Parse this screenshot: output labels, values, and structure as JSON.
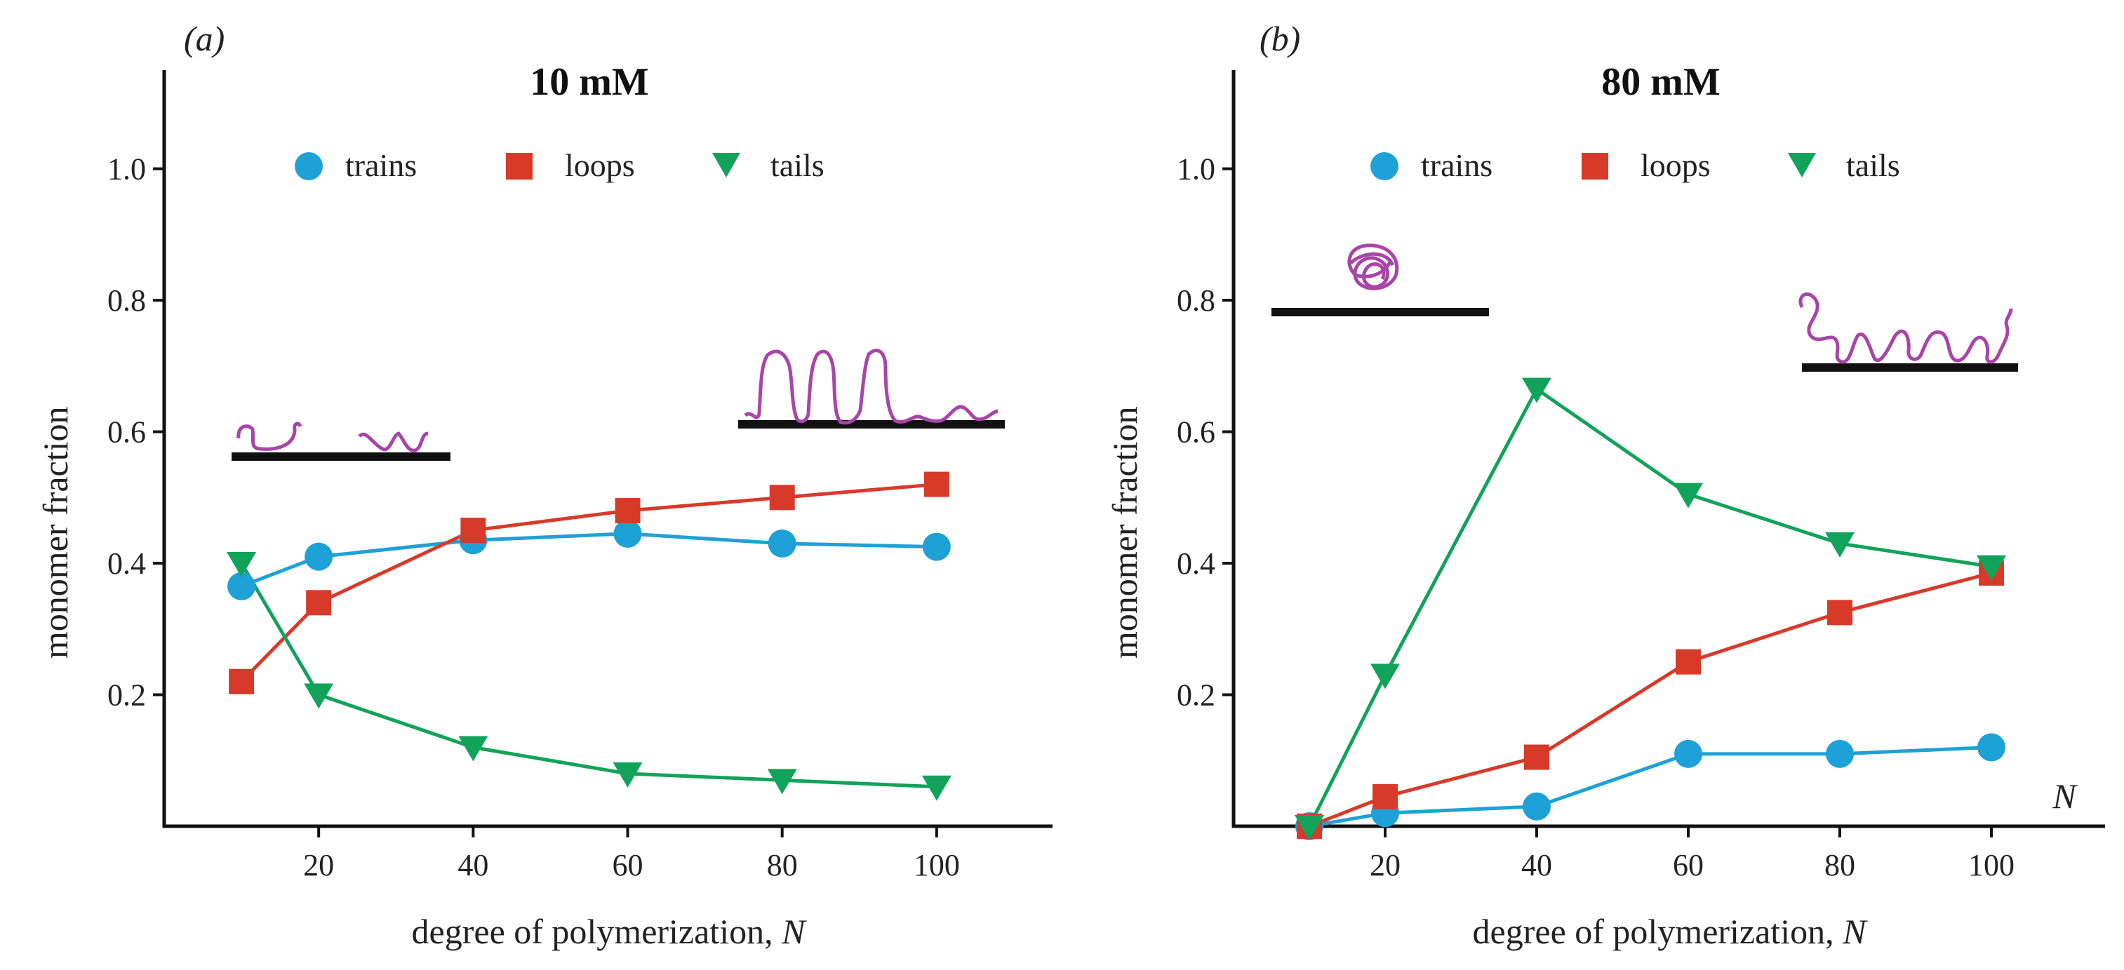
{
  "chart_data": [
    {
      "type": "line",
      "panel_label": "(a)",
      "title": "10 mM",
      "xlabel": "degree of polymerization, ",
      "xlabel_var": "N",
      "ylabel": "monomer fraction",
      "xlim": [
        0,
        115
      ],
      "ylim": [
        0,
        1.15
      ],
      "xticks": [
        20,
        40,
        60,
        80,
        100
      ],
      "xtick_labels": [
        "20",
        "40",
        "60",
        "80",
        "100"
      ],
      "yticks": [
        0.2,
        0.4,
        0.6,
        0.8,
        1.0
      ],
      "ytick_labels": [
        "0.2",
        "0.4",
        "0.6",
        "0.8",
        "1.0"
      ],
      "legend_position": "top",
      "series": [
        {
          "name": "trains",
          "marker": "circle",
          "color": "#1da1d6",
          "x": [
            10,
            20,
            40,
            60,
            80,
            100
          ],
          "values": [
            0.365,
            0.41,
            0.435,
            0.445,
            0.43,
            0.425
          ]
        },
        {
          "name": "loops",
          "marker": "square",
          "color": "#d83a2a",
          "x": [
            10,
            20,
            40,
            60,
            80,
            100
          ],
          "values": [
            0.22,
            0.34,
            0.45,
            0.48,
            0.5,
            0.52
          ]
        },
        {
          "name": "tails",
          "marker": "triangle-down",
          "color": "#12a35a",
          "x": [
            10,
            20,
            40,
            60,
            80,
            100
          ],
          "values": [
            0.4,
            0.2,
            0.12,
            0.08,
            0.07,
            0.06
          ]
        }
      ]
    },
    {
      "type": "line",
      "panel_label": "(b)",
      "title": "80 mM",
      "xlabel": "degree of polymerization, ",
      "xlabel_var": "N",
      "ylabel": "monomer fraction",
      "corner_label": "N",
      "xlim": [
        0,
        115
      ],
      "ylim": [
        0,
        1.15
      ],
      "xticks": [
        20,
        40,
        60,
        80,
        100
      ],
      "xtick_labels": [
        "20",
        "40",
        "60",
        "80",
        "100"
      ],
      "yticks": [
        0.2,
        0.4,
        0.6,
        0.8,
        1.0
      ],
      "ytick_labels": [
        "0.2",
        "0.4",
        "0.6",
        "0.8",
        "1.0"
      ],
      "legend_position": "top",
      "series": [
        {
          "name": "trains",
          "marker": "circle",
          "color": "#1da1d6",
          "x": [
            10,
            20,
            40,
            60,
            80,
            100
          ],
          "values": [
            0.0,
            0.02,
            0.03,
            0.11,
            0.11,
            0.12
          ]
        },
        {
          "name": "loops",
          "marker": "square",
          "color": "#d83a2a",
          "x": [
            10,
            20,
            40,
            60,
            80,
            100
          ],
          "values": [
            0.0,
            0.045,
            0.105,
            0.25,
            0.325,
            0.385
          ]
        },
        {
          "name": "tails",
          "marker": "triangle-down",
          "color": "#12a35a",
          "x": [
            10,
            20,
            40,
            60,
            80,
            100
          ],
          "values": [
            0.0,
            0.23,
            0.665,
            0.505,
            0.43,
            0.395
          ]
        }
      ]
    }
  ],
  "colors": {
    "axis": "#111111",
    "polymer": "#a845a8",
    "surface": "#111111"
  }
}
